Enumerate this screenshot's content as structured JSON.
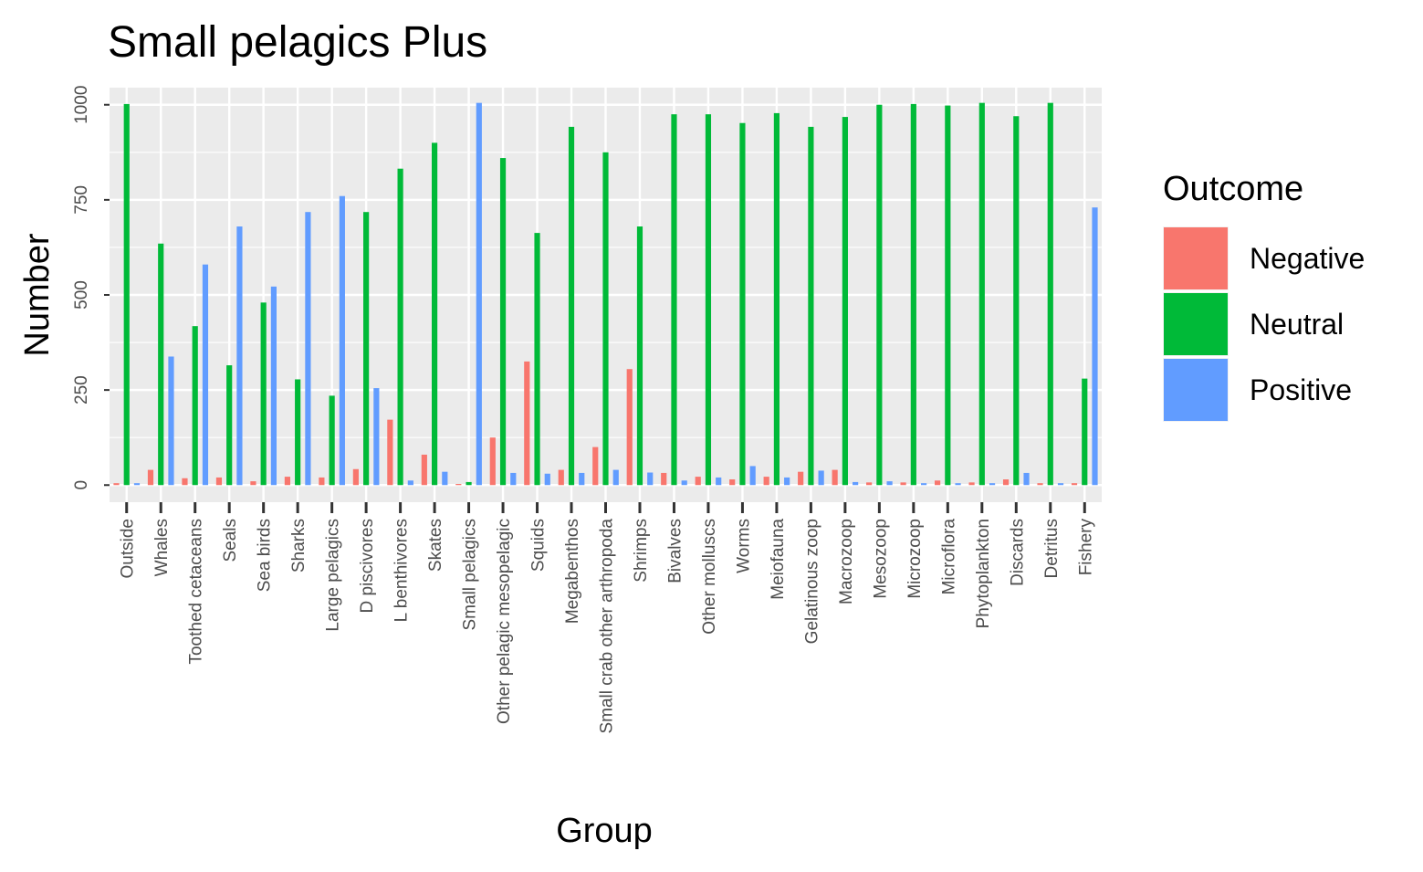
{
  "chart_data": {
    "type": "bar",
    "title": "Small pelagics Plus",
    "xlabel": "Group",
    "ylabel": "Number",
    "ylim": [
      -45,
      1045
    ],
    "yticks": [
      0,
      250,
      500,
      750,
      1000
    ],
    "ytick_labels": [
      "0",
      "250",
      "500",
      "750",
      "1000"
    ],
    "grid": true,
    "legend_position": "right",
    "legend_title": "Outcome",
    "categories": [
      "Outside",
      "Whales",
      "Toothed cetaceans",
      "Seals",
      "Sea birds",
      "Sharks",
      "Large pelagics",
      "D piscivores",
      "L benthivores",
      "Skates",
      "Small pelagics",
      "Other pelagic mesopelagic",
      "Squids",
      "Megabenthos",
      "Small crab other arthropoda",
      "Shrimps",
      "Bivalves",
      "Other molluscs",
      "Worms",
      "Meiofauna",
      "Gelatinous zoop",
      "Macrozoop",
      "Mesozoop",
      "Microzoop",
      "Microflora",
      "Phytoplankton",
      "Discards",
      "Detritus",
      "Fishery"
    ],
    "series": [
      {
        "name": "Negative",
        "color": "#F8766D",
        "values": [
          5,
          40,
          18,
          20,
          10,
          22,
          20,
          42,
          172,
          80,
          3,
          125,
          325,
          40,
          100,
          305,
          32,
          22,
          15,
          22,
          35,
          40,
          7,
          7,
          12,
          7,
          15,
          5,
          5
        ]
      },
      {
        "name": "Neutral",
        "color": "#00BA38",
        "values": [
          1002,
          635,
          418,
          315,
          480,
          278,
          235,
          718,
          832,
          900,
          8,
          860,
          663,
          942,
          875,
          680,
          975,
          975,
          952,
          978,
          942,
          968,
          1000,
          1002,
          998,
          1005,
          970,
          1005,
          280
        ]
      },
      {
        "name": "Positive",
        "color": "#619CFF",
        "values": [
          5,
          338,
          580,
          680,
          522,
          718,
          760,
          255,
          12,
          35,
          1005,
          32,
          30,
          32,
          40,
          33,
          12,
          20,
          50,
          20,
          38,
          8,
          10,
          5,
          5,
          5,
          32,
          5,
          730
        ]
      }
    ]
  }
}
